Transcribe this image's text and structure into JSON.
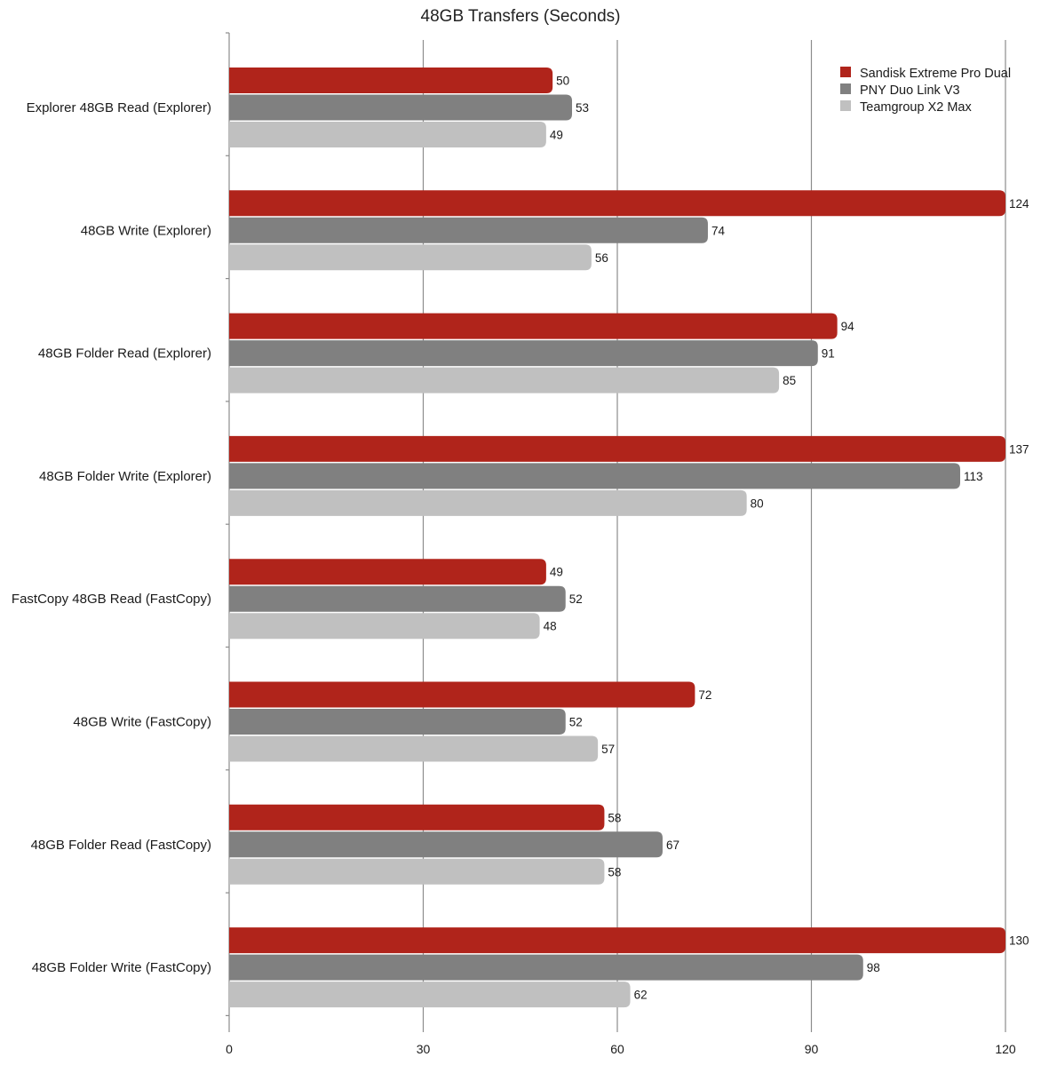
{
  "chart_data": {
    "type": "bar",
    "orientation": "horizontal",
    "title": "48GB Transfers (Seconds)",
    "xlabel": "",
    "ylabel": "",
    "xlim": [
      0,
      120
    ],
    "xticks": [
      0,
      30,
      60,
      90,
      120
    ],
    "grid": true,
    "legend_position": "top-right",
    "categories": [
      "Explorer 48GB Read (Explorer)",
      "48GB Write (Explorer)",
      "48GB Folder Read (Explorer)",
      "48GB Folder Write (Explorer)",
      "FastCopy 48GB Read (FastCopy)",
      "48GB Write (FastCopy)",
      "48GB Folder Read (FastCopy)",
      "48GB Folder Write (FastCopy)"
    ],
    "series": [
      {
        "name": "Sandisk Extreme Pro Dual",
        "color": "#b0241b",
        "values": [
          50,
          124,
          94,
          137,
          49,
          72,
          58,
          130
        ]
      },
      {
        "name": "PNY Duo Link V3",
        "color": "#808080",
        "values": [
          53,
          74,
          91,
          113,
          52,
          52,
          67,
          98
        ]
      },
      {
        "name": "Teamgroup X2 Max",
        "color": "#c0c0c0",
        "values": [
          49,
          56,
          85,
          80,
          48,
          57,
          58,
          62
        ]
      }
    ]
  }
}
